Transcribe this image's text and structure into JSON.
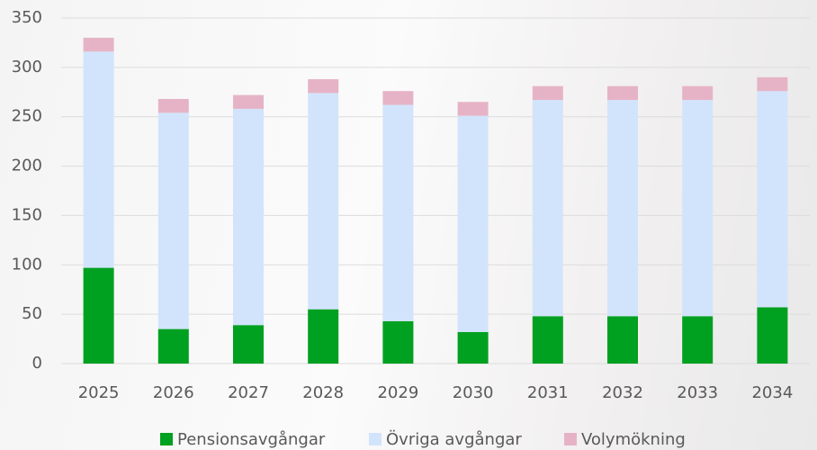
{
  "chart_data": {
    "type": "stacked_bar",
    "categories": [
      "2025",
      "2026",
      "2027",
      "2028",
      "2029",
      "2030",
      "2031",
      "2032",
      "2033",
      "2034"
    ],
    "series": [
      {
        "name": "Pensionsavgångar",
        "color": "#00a020",
        "values": [
          97,
          35,
          39,
          55,
          43,
          32,
          48,
          48,
          48,
          57
        ]
      },
      {
        "name": "Övriga avgångar",
        "color": "#d2e4fb",
        "values": [
          219,
          219,
          219,
          219,
          219,
          219,
          219,
          219,
          219,
          219
        ]
      },
      {
        "name": "Volymökning",
        "color": "#e6b3c6",
        "values": [
          14,
          14,
          14,
          14,
          14,
          14,
          14,
          14,
          14,
          14
        ]
      }
    ],
    "ylim": [
      0,
      350
    ],
    "yticks": [
      0,
      50,
      100,
      150,
      200,
      250,
      300,
      350
    ],
    "grid": true,
    "legend": "bottom"
  }
}
